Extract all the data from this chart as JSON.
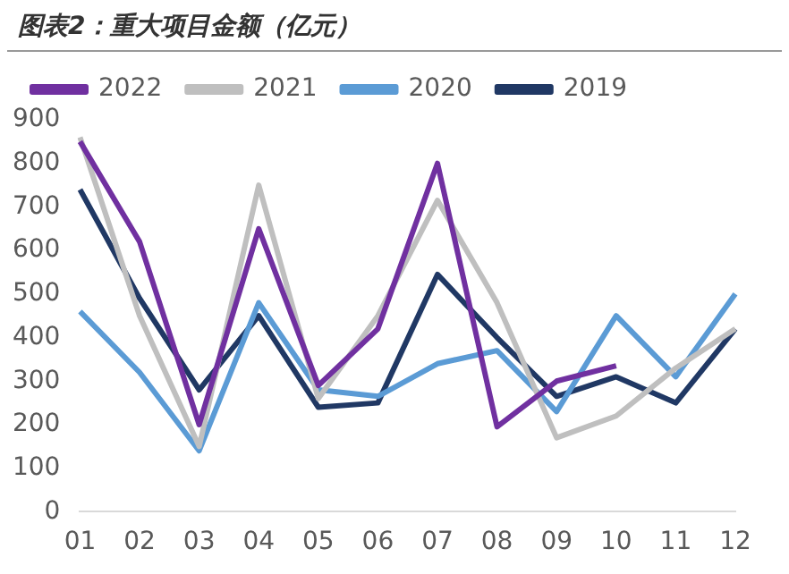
{
  "chart_data": {
    "type": "line",
    "title": "图表2：重大项目金额（亿元）",
    "categories": [
      "01",
      "02",
      "03",
      "04",
      "05",
      "06",
      "07",
      "08",
      "09",
      "10",
      "11",
      "12"
    ],
    "series": [
      {
        "name": "2022",
        "color": "#7030a0",
        "values": [
          850,
          620,
          200,
          650,
          290,
          420,
          800,
          195,
          300,
          335,
          null,
          null
        ]
      },
      {
        "name": "2021",
        "color": "#bfbfbf",
        "values": [
          860,
          450,
          150,
          750,
          260,
          450,
          715,
          480,
          170,
          220,
          330,
          420
        ]
      },
      {
        "name": "2020",
        "color": "#5b9bd5",
        "values": [
          460,
          320,
          140,
          480,
          280,
          265,
          340,
          370,
          230,
          450,
          310,
          500
        ]
      },
      {
        "name": "2019",
        "color": "#203864",
        "values": [
          740,
          490,
          280,
          450,
          240,
          250,
          545,
          400,
          265,
          310,
          250,
          420
        ]
      }
    ],
    "ylim": [
      0,
      900
    ],
    "yticks": [
      0,
      100,
      200,
      300,
      400,
      500,
      600,
      700,
      800,
      900
    ],
    "grid": false,
    "legend": "top",
    "marker": "none",
    "line_style": "solid"
  }
}
